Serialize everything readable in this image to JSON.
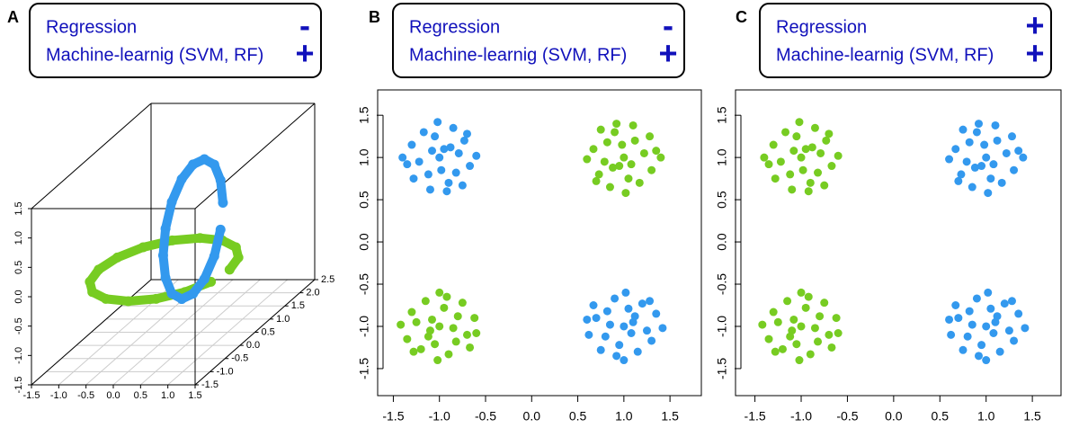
{
  "chart_data": [
    {
      "type": "scatter3d",
      "panel_label": "A",
      "legend": [
        {
          "text": "Regression",
          "sign": "-"
        },
        {
          "text": "Machine-learnig (SVM, RF)",
          "sign": "+"
        }
      ],
      "xlim": [
        -1.5,
        1.5
      ],
      "ylim": [
        -1.5,
        2.5
      ],
      "zlim": [
        -1.5,
        1.5
      ],
      "xticks": [
        -1.5,
        {
          "value": -1,
          "label": "-1.0"
        },
        -0.5,
        {
          "value": 0,
          "label": "0.0"
        },
        0.5,
        {
          "value": 1,
          "label": "1.0"
        },
        1.5
      ],
      "yticks": [
        -1.5,
        {
          "value": -1,
          "label": "-1.0"
        },
        -0.5,
        {
          "value": 0,
          "label": "0.0"
        },
        0.5,
        {
          "value": 1,
          "label": "1.0"
        },
        1.5,
        {
          "value": 2,
          "label": "2.0"
        },
        2.5
      ],
      "zticks": [
        -1.5,
        {
          "value": -1,
          "label": "-1.0"
        },
        -0.5,
        {
          "value": 0,
          "label": "0.0"
        },
        0.5,
        {
          "value": 1,
          "label": "1.0"
        },
        1.5
      ],
      "grid": true,
      "series": [
        {
          "color": "#77cc22",
          "x": [
            1.2,
            1.11,
            0.85,
            0.46,
            0,
            -0.46,
            -0.85,
            -1.11,
            -1.2,
            -1.11,
            -0.85,
            -0.46,
            0,
            0.46,
            0.85,
            1.11
          ],
          "y": [
            0.2,
            0.66,
            1.05,
            1.31,
            1.4,
            1.31,
            1.05,
            0.66,
            0.2,
            -0.26,
            -0.65,
            -0.91,
            -1.0,
            -0.91,
            -0.65,
            -0.26
          ],
          "z": [
            -0.3,
            -0.3,
            -0.3,
            -0.3,
            -0.3,
            -0.3,
            -0.3,
            -0.3,
            -0.3,
            -0.3,
            -0.3,
            -0.3,
            -0.3,
            -0.3,
            -0.3,
            -0.3
          ]
        },
        {
          "color": "#3399ee",
          "x": [
            0.53,
            0.53,
            0.53,
            0.53,
            0.53,
            0.53,
            0.53,
            0.53,
            0.53,
            0.53,
            0.53,
            0.53,
            0.53,
            0.53,
            0.53,
            0.53
          ],
          "y": [
            1.2,
            1.12,
            0.91,
            0.58,
            0.2,
            -0.18,
            -0.51,
            -0.72,
            -0.8,
            -0.72,
            -0.51,
            -0.18,
            0.2,
            0.58,
            0.91,
            1.12
          ],
          "z": [
            0.39,
            0.81,
            1.17,
            1.41,
            1.49,
            1.41,
            1.17,
            0.81,
            0.39,
            -0.03,
            -0.39,
            -0.63,
            -0.71,
            -0.63,
            -0.39,
            -0.03
          ]
        }
      ]
    },
    {
      "type": "scatter",
      "panel_label": "B",
      "legend": [
        {
          "text": "Regression",
          "sign": "-"
        },
        {
          "text": "Machine-learnig (SVM, RF)",
          "sign": "+"
        }
      ],
      "xlim": [
        -1.67,
        1.84
      ],
      "ylim": [
        -1.82,
        1.8
      ],
      "xticks": [
        -1.5,
        {
          "value": -1,
          "label": "-1.0"
        },
        -0.5,
        {
          "value": 0,
          "label": "0.0"
        },
        0.5,
        {
          "value": 1,
          "label": "1.0"
        },
        1.5
      ],
      "yticks": [
        -1.5,
        {
          "value": -1,
          "label": "-1.0"
        },
        -0.5,
        {
          "value": 0,
          "label": "0.0"
        },
        0.5,
        {
          "value": 1,
          "label": "1.0"
        },
        1.5
      ],
      "series": [
        {
          "color": "#3399ee",
          "x": [
            -0.95,
            -1.12,
            -0.79,
            -1.3,
            -0.9,
            -1.05,
            -0.67,
            -1.22,
            -0.85,
            -1.4,
            -0.98,
            -0.73,
            -1.17,
            -0.92,
            -1.08,
            -0.6,
            -1.28,
            -0.82,
            -1.02,
            -0.88,
            -1.35,
            -0.75,
            -1.1,
            -1.0,
            -0.7,
            1.1,
            0.8,
            1.05,
            1.15,
            0.7,
            1.25,
            0.9,
            0.95,
            1.35,
            1.0,
            0.85,
            1.2,
            1.3,
            0.6,
            1.08,
            1.02,
            0.75,
            0.82,
            1.42,
            1.12,
            0.92,
            0.67,
            0.62,
            1.0,
            1.28
          ],
          "y": [
            1.1,
            0.8,
            1.05,
            1.15,
            0.7,
            1.25,
            0.9,
            0.95,
            1.35,
            1.0,
            0.85,
            1.2,
            1.3,
            0.6,
            1.08,
            1.02,
            0.75,
            0.82,
            1.42,
            1.12,
            0.92,
            0.67,
            0.62,
            1.0,
            1.28,
            -0.95,
            -1.12,
            -0.79,
            -1.3,
            -0.9,
            -1.05,
            -0.67,
            -1.22,
            -0.85,
            -1.4,
            -0.98,
            -0.73,
            -1.17,
            -0.92,
            -1.08,
            -0.6,
            -1.28,
            -0.82,
            -1.02,
            -0.88,
            -1.35,
            -0.75,
            -1.1,
            -1.0,
            -0.7
          ]
        },
        {
          "color": "#77cc22",
          "x": [
            0.95,
            1.12,
            0.79,
            1.3,
            0.9,
            1.05,
            0.67,
            1.22,
            0.85,
            1.4,
            0.98,
            0.73,
            1.17,
            0.92,
            1.08,
            0.6,
            1.28,
            0.82,
            1.02,
            0.88,
            1.35,
            0.75,
            1.1,
            1.0,
            0.7,
            -1.1,
            -0.8,
            -1.05,
            -1.15,
            -0.7,
            -1.25,
            -0.9,
            -0.95,
            -1.35,
            -1.0,
            -0.85,
            -1.2,
            -1.3,
            -0.6,
            -1.08,
            -1.02,
            -0.75,
            -0.82,
            -1.42,
            -1.12,
            -0.92,
            -0.67,
            -0.62,
            -1.0,
            -1.28
          ],
          "y": [
            0.9,
            1.2,
            0.95,
            0.85,
            1.3,
            0.75,
            1.1,
            1.05,
            0.65,
            1.0,
            1.15,
            0.8,
            0.7,
            1.4,
            0.92,
            0.98,
            1.25,
            1.18,
            0.58,
            0.88,
            1.08,
            1.33,
            1.38,
            1.0,
            0.72,
            -1.05,
            -0.88,
            -1.21,
            -0.7,
            -1.1,
            -0.95,
            -1.33,
            -0.78,
            -1.15,
            -0.6,
            -1.02,
            -1.27,
            -0.83,
            -1.08,
            -0.92,
            -1.4,
            -0.72,
            -1.18,
            -0.98,
            -1.12,
            -0.65,
            -1.25,
            -0.9,
            -1.0,
            -1.3
          ]
        }
      ]
    },
    {
      "type": "scatter",
      "panel_label": "C",
      "legend": [
        {
          "text": "Regression",
          "sign": "+"
        },
        {
          "text": "Machine-learnig (SVM, RF)",
          "sign": "+"
        }
      ],
      "xlim": [
        -1.71,
        1.81
      ],
      "ylim": [
        -1.82,
        1.8
      ],
      "xticks": [
        -1.5,
        {
          "value": -1,
          "label": "-1.0"
        },
        -0.5,
        {
          "value": 0,
          "label": "0.0"
        },
        0.5,
        {
          "value": 1,
          "label": "1.0"
        },
        1.5
      ],
      "yticks": [
        -1.5,
        {
          "value": -1,
          "label": "-1.0"
        },
        -0.5,
        {
          "value": 0,
          "label": "0.0"
        },
        0.5,
        {
          "value": 1,
          "label": "1.0"
        },
        1.5
      ],
      "series": [
        {
          "color": "#3399ee",
          "x": [
            0.95,
            1.12,
            0.79,
            1.3,
            0.9,
            1.05,
            0.67,
            1.22,
            0.85,
            1.4,
            0.98,
            0.73,
            1.17,
            0.92,
            1.08,
            0.6,
            1.28,
            0.82,
            1.02,
            0.88,
            1.35,
            0.75,
            1.1,
            1.0,
            0.7,
            1.1,
            0.8,
            1.05,
            1.15,
            0.7,
            1.25,
            0.9,
            0.95,
            1.35,
            1.0,
            0.85,
            1.2,
            1.3,
            0.6,
            1.08,
            1.02,
            0.75,
            0.82,
            1.42,
            1.12,
            0.92,
            0.67,
            0.62,
            1.0,
            1.28
          ],
          "y": [
            0.9,
            1.2,
            0.95,
            0.85,
            1.3,
            0.75,
            1.1,
            1.05,
            0.65,
            1.0,
            1.15,
            0.8,
            0.7,
            1.4,
            0.92,
            0.98,
            1.25,
            1.18,
            0.58,
            0.88,
            1.08,
            1.33,
            1.38,
            1.0,
            0.72,
            -0.95,
            -1.12,
            -0.79,
            -1.3,
            -0.9,
            -1.05,
            -0.67,
            -1.22,
            -0.85,
            -1.4,
            -0.98,
            -0.73,
            -1.17,
            -0.92,
            -1.08,
            -0.6,
            -1.28,
            -0.82,
            -1.02,
            -0.88,
            -1.35,
            -0.75,
            -1.1,
            -1.0,
            -0.7
          ]
        },
        {
          "color": "#77cc22",
          "x": [
            -0.95,
            -1.12,
            -0.79,
            -1.3,
            -0.9,
            -1.05,
            -0.67,
            -1.22,
            -0.85,
            -1.4,
            -0.98,
            -0.73,
            -1.17,
            -0.92,
            -1.08,
            -0.6,
            -1.28,
            -0.82,
            -1.02,
            -0.88,
            -1.35,
            -0.75,
            -1.1,
            -1.0,
            -0.7,
            -1.1,
            -0.8,
            -1.05,
            -1.15,
            -0.7,
            -1.25,
            -0.9,
            -0.95,
            -1.35,
            -1.0,
            -0.85,
            -1.2,
            -1.3,
            -0.6,
            -1.08,
            -1.02,
            -0.75,
            -0.82,
            -1.42,
            -1.12,
            -0.92,
            -0.67,
            -0.62,
            -1.0,
            -1.28
          ],
          "y": [
            1.1,
            0.8,
            1.05,
            1.15,
            0.7,
            1.25,
            0.9,
            0.95,
            1.35,
            1.0,
            0.85,
            1.2,
            1.3,
            0.6,
            1.08,
            1.02,
            0.75,
            0.82,
            1.42,
            1.12,
            0.92,
            0.67,
            0.62,
            1.0,
            1.28,
            -1.05,
            -0.88,
            -1.21,
            -0.7,
            -1.1,
            -0.95,
            -1.33,
            -0.78,
            -1.15,
            -0.6,
            -1.02,
            -1.27,
            -0.83,
            -1.08,
            -0.92,
            -1.4,
            -0.72,
            -1.18,
            -0.98,
            -1.12,
            -0.65,
            -1.25,
            -0.9,
            -1.0,
            -1.3
          ]
        }
      ]
    }
  ]
}
